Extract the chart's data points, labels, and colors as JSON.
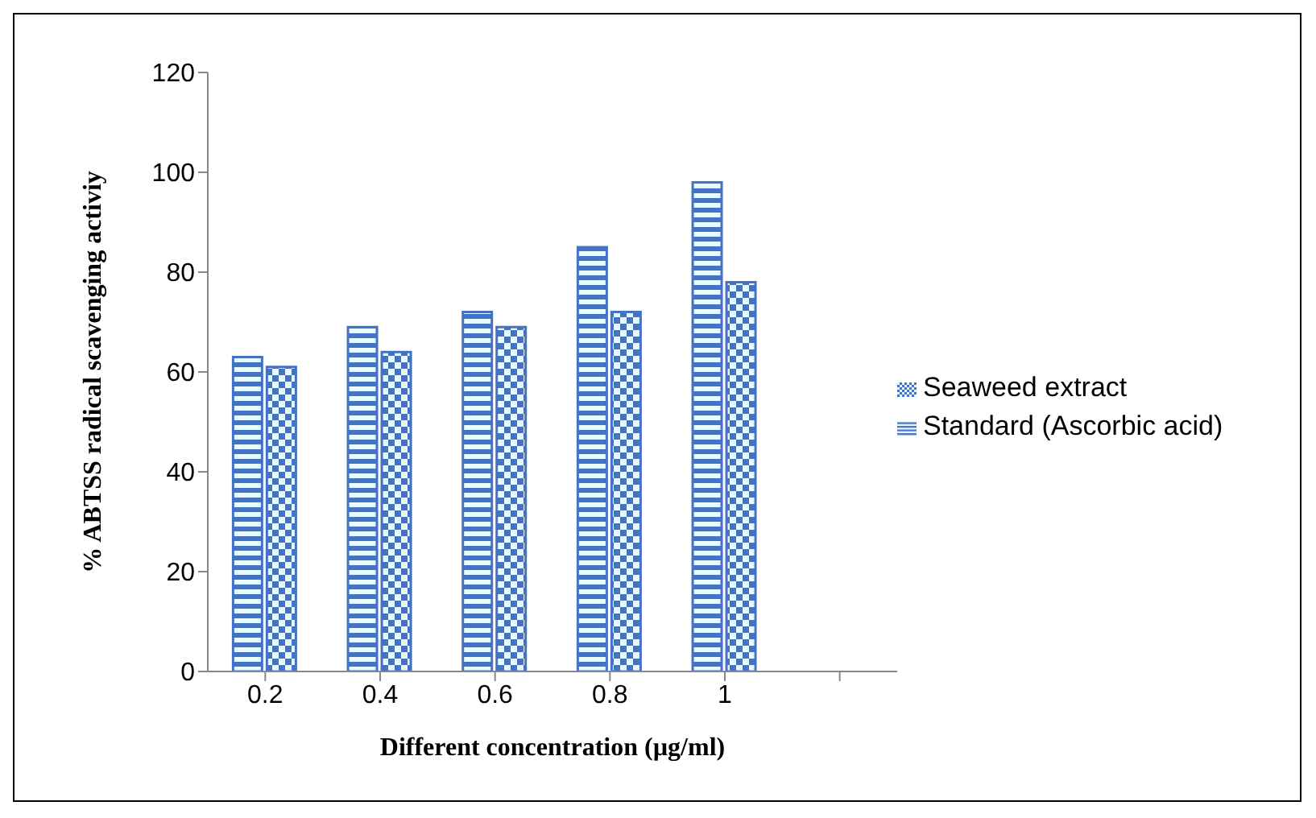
{
  "chart_data": {
    "type": "bar",
    "xlabel": "Different concentration  (µg/ml)",
    "ylabel": "% ABTSS radical  scavenging  activiy",
    "categories": [
      "0.2",
      "0.4",
      "0.6",
      "0.8",
      "1",
      null
    ],
    "series": [
      {
        "name": "Standard (Ascorbic acid)",
        "color": "#4472c4",
        "values": [
          63,
          69,
          72,
          85,
          98,
          null
        ]
      },
      {
        "name": "Seaweed extract",
        "color": "#4472c4",
        "values": [
          61,
          64,
          69,
          72,
          78,
          null
        ]
      }
    ],
    "ylim": [
      0,
      120
    ],
    "yticks": [
      0,
      20,
      40,
      60,
      80,
      100,
      120
    ],
    "grid": false,
    "legend": "right"
  }
}
